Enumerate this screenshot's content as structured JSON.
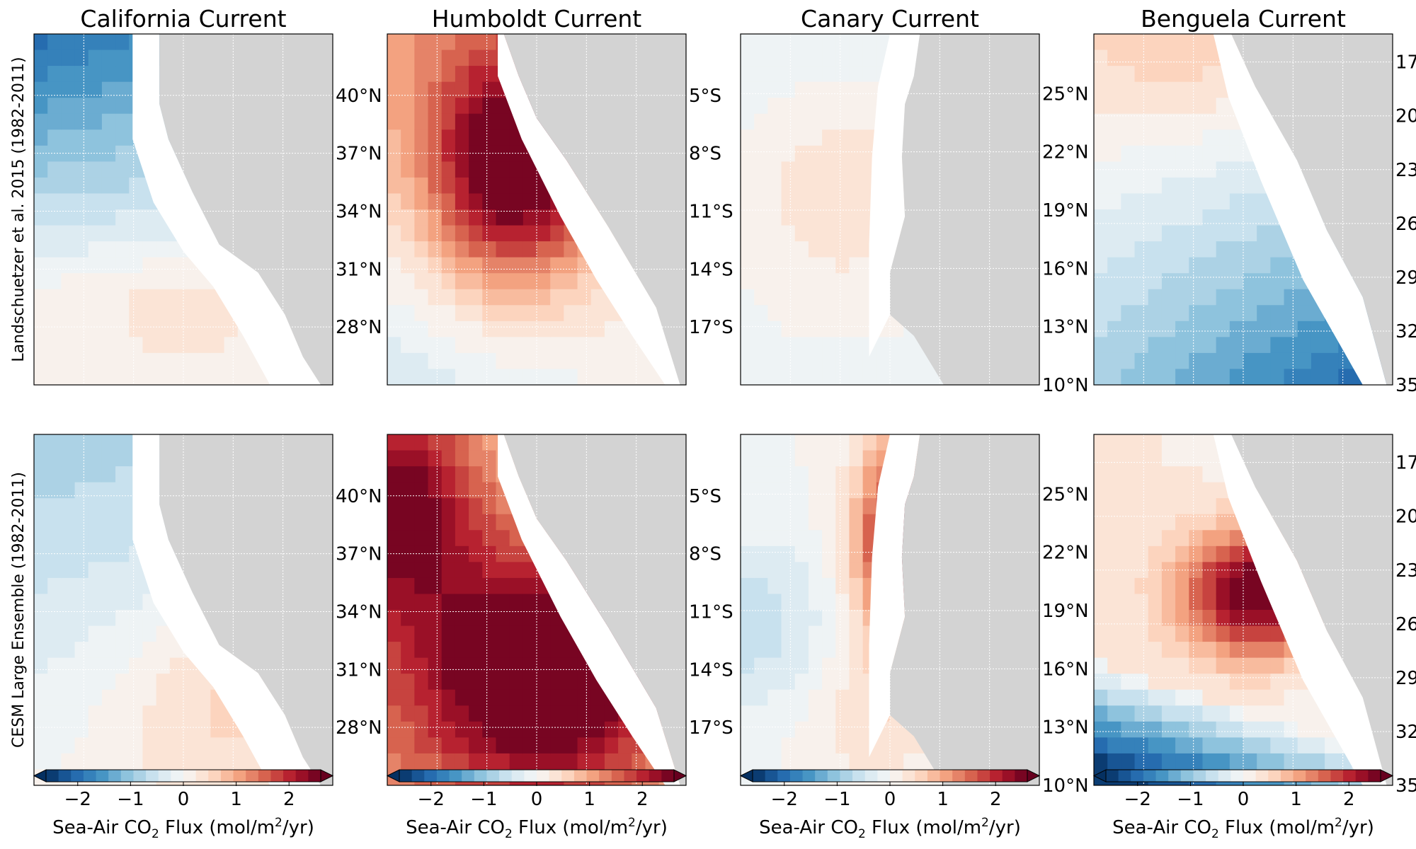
{
  "figure": {
    "columns": [
      "California Current",
      "Humboldt Current",
      "Canary Current",
      "Benguela Current"
    ],
    "rows": [
      "Landschuetzer et al. 2015 (1982-2011)",
      "CESM Large Ensemble (1982-2011)"
    ],
    "lat_ticks": [
      [
        "40°N",
        "37°N",
        "34°N",
        "31°N",
        "28°N"
      ],
      [
        "5°S",
        "8°S",
        "11°S",
        "14°S",
        "17°S"
      ],
      [
        "25°N",
        "22°N",
        "19°N",
        "16°N",
        "13°N",
        "10°N"
      ],
      [
        "17°",
        "20°",
        "23°",
        "26°",
        "29°",
        "32°",
        "35°"
      ]
    ],
    "colorbar": {
      "label_main": "Sea-Air CO",
      "label_sub": "2",
      "label_unit_pre": " Flux (mol/m",
      "label_sup": "2",
      "label_unit_post": "/yr)",
      "ticks": [
        "−2",
        "−1",
        "0",
        "1",
        "2"
      ],
      "tick_values": [
        -2,
        -1,
        0,
        1,
        2
      ],
      "range": [
        -2.6,
        2.6
      ],
      "levels": 22,
      "extend": "both",
      "colormap": "RdBu_r"
    },
    "colors": {
      "land": "#d3d3d3",
      "coast_mask": "#ffffff",
      "grid": "#ffffff",
      "frame": "#000000",
      "neg_max": "#053061",
      "neutral": "#f7f7f7",
      "pos_max": "#67001f"
    }
  },
  "chart_data": [
    {
      "type": "heatmap",
      "title": "California Current",
      "ylabel": "Landschuetzer et al. 2015 (1982-2011)",
      "yticks": [
        "40°N",
        "37°N",
        "34°N",
        "31°N",
        "28°N"
      ],
      "value_range": [
        -2.6,
        2.6
      ],
      "pattern": "uptake (blue) offshore north, near-neutral to weak outgassing south",
      "approx_min": -1.7,
      "approx_max": 0.4
    },
    {
      "type": "heatmap",
      "title": "Humboldt Current",
      "ylabel": "",
      "yticks": [
        "5°S",
        "8°S",
        "11°S",
        "14°S",
        "17°S"
      ],
      "value_range": [
        -2.6,
        2.6
      ],
      "pattern": "strong outgassing near coast",
      "approx_min": 0.1,
      "approx_max": 2.6
    },
    {
      "type": "heatmap",
      "title": "Canary Current",
      "ylabel": "",
      "yticks": [
        "25°N",
        "22°N",
        "19°N",
        "16°N",
        "13°N",
        "10°N"
      ],
      "value_range": [
        -2.6,
        2.6
      ],
      "pattern": "near-neutral, weak outgassing",
      "approx_min": -0.3,
      "approx_max": 0.5
    },
    {
      "type": "heatmap",
      "title": "Benguela Current",
      "ylabel": "",
      "yticks": [
        "17°",
        "20°",
        "23°",
        "26°",
        "29°",
        "32°",
        "35°"
      ],
      "value_range": [
        -2.6,
        2.6
      ],
      "pattern": "weak outgassing north, uptake south",
      "approx_min": -1.9,
      "approx_max": 0.5
    },
    {
      "type": "heatmap",
      "title": "California Current",
      "ylabel": "CESM Large Ensemble (1982-2011)",
      "yticks": [
        "40°N",
        "37°N",
        "34°N",
        "31°N",
        "28°N"
      ],
      "value_range": [
        -2.6,
        2.6
      ],
      "pattern": "weak uptake north, weak outgassing south",
      "approx_min": -0.9,
      "approx_max": 0.6
    },
    {
      "type": "heatmap",
      "title": "Humboldt Current",
      "ylabel": "",
      "yticks": [
        "5°S",
        "8°S",
        "11°S",
        "14°S",
        "17°S"
      ],
      "value_range": [
        -2.6,
        2.6
      ],
      "pattern": "strong outgassing across domain",
      "approx_min": 0.3,
      "approx_max": 2.6
    },
    {
      "type": "heatmap",
      "title": "Canary Current",
      "ylabel": "",
      "yticks": [
        "25°N",
        "22°N",
        "19°N",
        "16°N",
        "13°N",
        "10°N"
      ],
      "value_range": [
        -2.6,
        2.6
      ],
      "pattern": "outgassing band along coast, weak uptake offshore",
      "approx_min": -0.6,
      "approx_max": 2.4
    },
    {
      "type": "heatmap",
      "title": "Benguela Current",
      "ylabel": "",
      "yticks": [
        "17°",
        "20°",
        "23°",
        "26°",
        "29°",
        "32°",
        "35°"
      ],
      "value_range": [
        -2.6,
        2.6
      ],
      "pattern": "strong outgassing north, strong uptake south",
      "approx_min": -2.5,
      "approx_max": 2.6
    }
  ]
}
